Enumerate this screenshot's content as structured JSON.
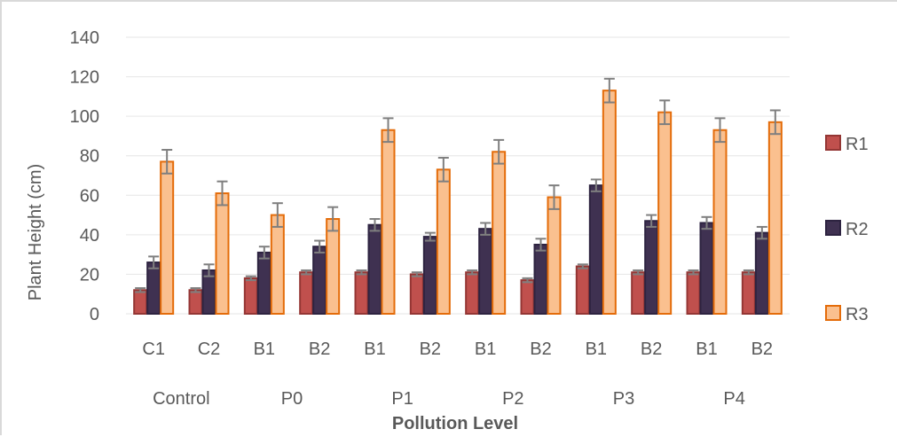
{
  "chart_data": {
    "type": "bar",
    "title": "",
    "xlabel": "Pollution Level",
    "ylabel": "Plant Height  (cm)",
    "ylim": [
      0,
      140
    ],
    "yticks": [
      0,
      20,
      40,
      60,
      80,
      100,
      120,
      140
    ],
    "grid": true,
    "legend_position": "right",
    "categories": [
      "C1",
      "C2",
      "B1",
      "B2",
      "B1",
      "B2",
      "B1",
      "B2",
      "B1",
      "B2",
      "B1",
      "B2"
    ],
    "groups": [
      {
        "label": "Control",
        "categories": [
          "C1",
          "C2"
        ]
      },
      {
        "label": "P0",
        "categories": [
          "B1",
          "B2"
        ]
      },
      {
        "label": "P1",
        "categories": [
          "B1",
          "B2"
        ]
      },
      {
        "label": "P2",
        "categories": [
          "B1",
          "B2"
        ]
      },
      {
        "label": "P3",
        "categories": [
          "B1",
          "B2"
        ]
      },
      {
        "label": "P4",
        "categories": [
          "B1",
          "B2"
        ]
      }
    ],
    "series": [
      {
        "name": "R1",
        "color": "#c0504d",
        "edge": "#943634",
        "values": [
          12,
          12,
          18,
          21,
          21,
          20,
          21,
          17,
          24,
          21,
          21,
          21
        ],
        "errors": [
          1,
          1,
          1,
          1,
          1,
          1,
          1,
          1,
          1,
          1,
          1,
          1
        ]
      },
      {
        "name": "R2",
        "color": "#3f3151",
        "edge": "#2d2340",
        "values": [
          26,
          22,
          31,
          34,
          45,
          39,
          43,
          35,
          65,
          47,
          46,
          41
        ],
        "errors": [
          3,
          3,
          3,
          3,
          3,
          2,
          3,
          3,
          3,
          3,
          3,
          3
        ]
      },
      {
        "name": "R3",
        "color": "#fac08f",
        "edge": "#e46c0a",
        "values": [
          77,
          61,
          50,
          48,
          93,
          73,
          82,
          59,
          113,
          102,
          93,
          97
        ],
        "errors": [
          6,
          6,
          6,
          6,
          6,
          6,
          6,
          6,
          6,
          6,
          6,
          6
        ]
      }
    ]
  }
}
